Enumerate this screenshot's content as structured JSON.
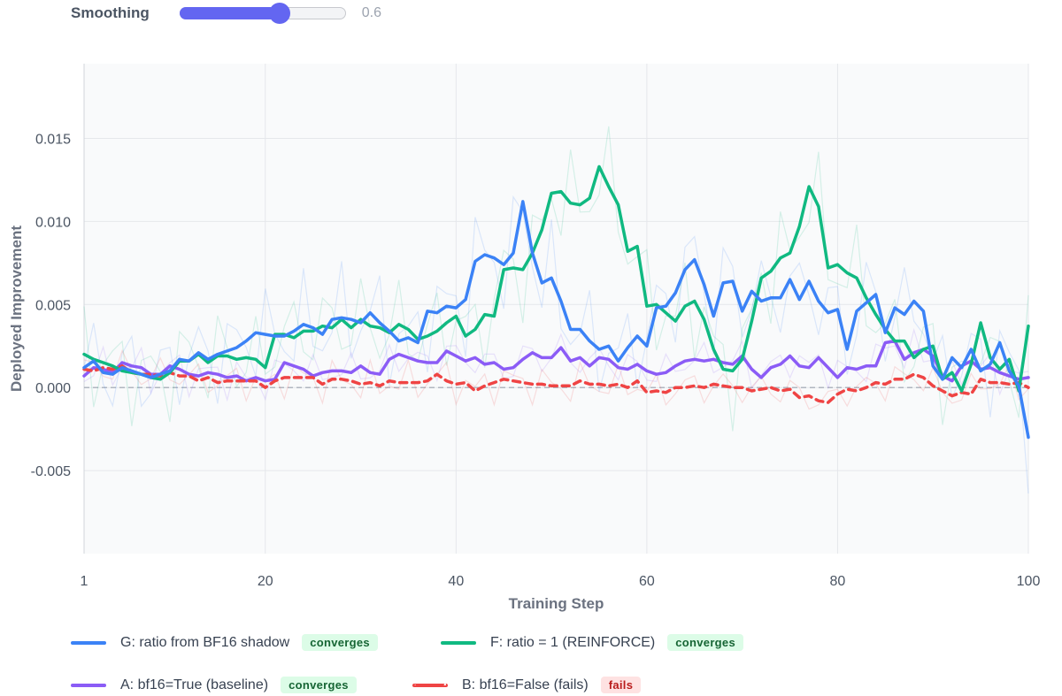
{
  "controls": {
    "smoothing_label": "Smoothing",
    "smoothing_value": "0.6",
    "smoothing_fraction": 0.6
  },
  "chart_data": {
    "type": "line",
    "xlabel": "Training Step",
    "ylabel": "Deployed Improvement",
    "xlim": [
      1,
      100
    ],
    "ylim": [
      -0.01,
      0.0195
    ],
    "xticks": [
      1,
      20,
      40,
      60,
      80,
      100
    ],
    "yticks": [
      -0.005,
      0.0,
      0.005,
      0.01,
      0.015
    ],
    "ytick_labels": [
      "-0.005",
      "0.000",
      "0.005",
      "0.010",
      "0.015"
    ],
    "xtick_labels": [
      "1",
      "20",
      "40",
      "60",
      "80",
      "100"
    ],
    "grid": true,
    "zero_line": true,
    "legend_position": "bottom",
    "x": [
      1,
      2,
      3,
      4,
      5,
      6,
      7,
      8,
      9,
      10,
      11,
      12,
      13,
      14,
      15,
      16,
      17,
      18,
      19,
      20,
      21,
      22,
      23,
      24,
      25,
      26,
      27,
      28,
      29,
      30,
      31,
      32,
      33,
      34,
      35,
      36,
      37,
      38,
      39,
      40,
      41,
      42,
      43,
      44,
      45,
      46,
      47,
      48,
      49,
      50,
      51,
      52,
      53,
      54,
      55,
      56,
      57,
      58,
      59,
      60,
      61,
      62,
      63,
      64,
      65,
      66,
      67,
      68,
      69,
      70,
      71,
      72,
      73,
      74,
      75,
      76,
      77,
      78,
      79,
      80,
      81,
      82,
      83,
      84,
      85,
      86,
      87,
      88,
      89,
      90,
      91,
      92,
      93,
      94,
      95,
      96,
      97,
      98,
      99,
      100
    ],
    "series": [
      {
        "name": "G: ratio from BF16 shadow",
        "badge": "converges",
        "badge_type": "good",
        "color": "#3b82f6",
        "dash": false,
        "values": [
          0.0012,
          0.0016,
          0.0009,
          0.0008,
          0.0012,
          0.001,
          0.0008,
          0.0006,
          0.0008,
          0.001,
          0.0017,
          0.0016,
          0.0021,
          0.0017,
          0.002,
          0.0022,
          0.0024,
          0.0028,
          0.0033,
          0.0032,
          0.0031,
          0.0031,
          0.0034,
          0.0038,
          0.0036,
          0.0032,
          0.0041,
          0.0042,
          0.0041,
          0.0039,
          0.0045,
          0.0039,
          0.0034,
          0.0028,
          0.003,
          0.0027,
          0.0046,
          0.0045,
          0.0049,
          0.0048,
          0.0053,
          0.0076,
          0.008,
          0.0078,
          0.0074,
          0.0081,
          0.0112,
          0.0081,
          0.0063,
          0.0066,
          0.0052,
          0.0035,
          0.0035,
          0.0028,
          0.0023,
          0.0025,
          0.0016,
          0.0024,
          0.0031,
          0.0025,
          0.0048,
          0.0049,
          0.0057,
          0.0071,
          0.0077,
          0.0062,
          0.0043,
          0.0063,
          0.0064,
          0.0046,
          0.0058,
          0.0052,
          0.0054,
          0.0054,
          0.0065,
          0.0053,
          0.0064,
          0.0052,
          0.0045,
          0.0047,
          0.0023,
          0.0046,
          0.0051,
          0.0056,
          0.0033,
          0.0048,
          0.0044,
          0.0052,
          0.0046,
          0.0013,
          0.0005,
          0.0018,
          0.0012,
          0.0023,
          0.001,
          0.0014,
          0.0027,
          0.001,
          0.0001,
          -0.003
        ]
      },
      {
        "name": "F: ratio = 1 (REINFORCE)",
        "badge": "converges",
        "badge_type": "good",
        "color": "#10b981",
        "dash": false,
        "values": [
          0.002,
          0.0017,
          0.0015,
          0.0013,
          0.001,
          0.0009,
          0.0008,
          0.0006,
          0.0005,
          0.0009,
          0.0016,
          0.0016,
          0.002,
          0.0015,
          0.0019,
          0.0019,
          0.0017,
          0.0018,
          0.0017,
          0.0012,
          0.0032,
          0.0032,
          0.003,
          0.0034,
          0.0034,
          0.0037,
          0.0036,
          0.0041,
          0.0036,
          0.0041,
          0.0037,
          0.0036,
          0.0033,
          0.0038,
          0.0035,
          0.0029,
          0.0031,
          0.0034,
          0.0039,
          0.0043,
          0.0031,
          0.0035,
          0.0044,
          0.0043,
          0.0071,
          0.0072,
          0.0071,
          0.0081,
          0.0095,
          0.0117,
          0.0118,
          0.0111,
          0.011,
          0.0114,
          0.0133,
          0.0121,
          0.011,
          0.0082,
          0.0085,
          0.0049,
          0.005,
          0.0045,
          0.004,
          0.0049,
          0.0052,
          0.0041,
          0.0023,
          0.0011,
          0.001,
          0.0017,
          0.004,
          0.0066,
          0.007,
          0.0078,
          0.0081,
          0.0097,
          0.0121,
          0.0109,
          0.0072,
          0.0074,
          0.0069,
          0.0066,
          0.0054,
          0.0044,
          0.0035,
          0.0028,
          0.0028,
          0.0018,
          0.0023,
          0.0025,
          0.0005,
          0.0009,
          -0.0002,
          0.0014,
          0.0039,
          0.0018,
          0.0011,
          0.0017,
          -0.0002,
          0.0037
        ]
      },
      {
        "name": "A: bf16=True (baseline)",
        "badge": "converges",
        "badge_type": "good",
        "color": "#8b5cf6",
        "dash": false,
        "values": [
          0.0007,
          0.0012,
          0.0011,
          0.0009,
          0.0015,
          0.0013,
          0.0012,
          0.0008,
          0.0008,
          0.0013,
          0.0011,
          0.0008,
          0.0007,
          0.0009,
          0.0008,
          0.0006,
          0.0007,
          0.0004,
          0.0006,
          0.0004,
          0.0005,
          0.0015,
          0.0013,
          0.0011,
          0.0007,
          0.0009,
          0.001,
          0.001,
          0.0009,
          0.0013,
          0.0009,
          0.0008,
          0.0017,
          0.002,
          0.0018,
          0.0016,
          0.0015,
          0.0015,
          0.0022,
          0.0019,
          0.0016,
          0.0018,
          0.0014,
          0.0015,
          0.0011,
          0.0012,
          0.0017,
          0.0021,
          0.0018,
          0.0018,
          0.0024,
          0.0016,
          0.0018,
          0.0013,
          0.0018,
          0.0017,
          0.0012,
          0.0011,
          0.0014,
          0.001,
          0.0008,
          0.0009,
          0.0013,
          0.0016,
          0.0017,
          0.0016,
          0.0017,
          0.0015,
          0.0014,
          0.0019,
          0.0011,
          0.0006,
          0.0012,
          0.0014,
          0.0019,
          0.0013,
          0.0012,
          0.0018,
          0.0012,
          0.0006,
          0.0012,
          0.0011,
          0.0013,
          0.0013,
          0.0027,
          0.0028,
          0.0017,
          0.0021,
          0.0023,
          0.0019,
          0.0007,
          0.0004,
          0.0013,
          0.0016,
          0.0011,
          0.0012,
          0.0009,
          0.0007,
          0.0005,
          0.0006
        ]
      },
      {
        "name": "B: bf16=False (fails)",
        "badge": "fails",
        "badge_type": "bad",
        "color": "#ef4444",
        "dash": true,
        "values": [
          0.0011,
          0.001,
          0.0012,
          0.0011,
          0.0013,
          0.0009,
          0.0008,
          0.0008,
          0.0007,
          0.0009,
          0.0007,
          0.0007,
          0.0004,
          0.0006,
          0.0003,
          0.0004,
          0.0004,
          0.0004,
          0.0004,
          0.0,
          0.0004,
          0.0006,
          0.0006,
          0.0006,
          0.0006,
          0.0002,
          0.0005,
          0.0005,
          0.0004,
          0.0002,
          0.0003,
          0.0001,
          0.0004,
          0.0003,
          0.0003,
          0.0003,
          0.0004,
          0.0008,
          0.0004,
          0.0002,
          0.0003,
          -0.0002,
          0.0001,
          0.0003,
          0.0005,
          0.0004,
          0.0003,
          0.0002,
          0.0002,
          0.0001,
          0.0001,
          0.0001,
          0.0004,
          0.0002,
          0.0002,
          0.0001,
          0.0002,
          0.0,
          0.0004,
          -0.0003,
          -0.0002,
          -0.0003,
          0.0,
          0.0,
          0.0001,
          0.0,
          0.0002,
          0.0001,
          0.0,
          0.0,
          -0.0002,
          -0.0001,
          0.0,
          -0.0002,
          -0.0001,
          -0.0006,
          -0.0005,
          -0.0008,
          -0.0009,
          -0.0004,
          -0.0001,
          -0.0002,
          0.0,
          0.0003,
          0.0002,
          0.0005,
          0.0005,
          0.0008,
          0.0006,
          0.0001,
          -0.0002,
          -0.0005,
          -0.0003,
          -0.0004,
          0.0005,
          0.0003,
          0.0003,
          0.0002,
          0.0003,
          0.0
        ]
      }
    ]
  }
}
